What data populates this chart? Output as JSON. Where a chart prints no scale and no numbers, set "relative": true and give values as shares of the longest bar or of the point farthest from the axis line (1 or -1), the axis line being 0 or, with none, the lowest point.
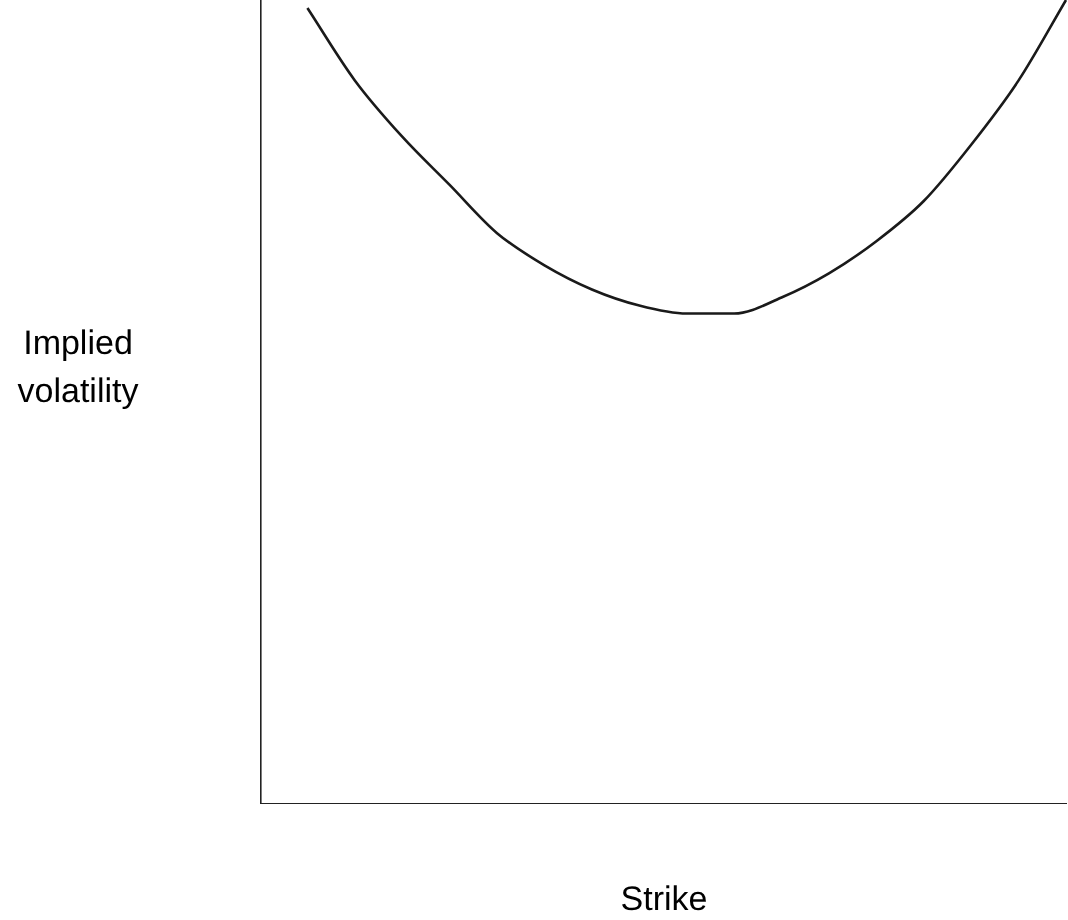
{
  "chart_data": {
    "type": "line",
    "xlabel": "Strike",
    "ylabel": "Implied volatility",
    "relative": true,
    "grid": false,
    "legend": false,
    "marker": "none",
    "line_style": "solid",
    "categories": [
      null,
      null,
      null,
      null,
      null,
      null,
      null,
      null,
      null,
      null,
      null,
      null,
      null,
      null,
      null,
      null,
      null,
      null
    ],
    "series": [
      {
        "color": "#1a1a1a",
        "values": [
          null,
          0.99,
          0.9,
          0.83,
          0.77,
          0.71,
          0.67,
          0.64,
          0.62,
          0.61,
          0.61,
          0.63,
          0.66,
          0.7,
          0.75,
          0.82,
          0.9,
          1.0
        ]
      }
    ]
  }
}
